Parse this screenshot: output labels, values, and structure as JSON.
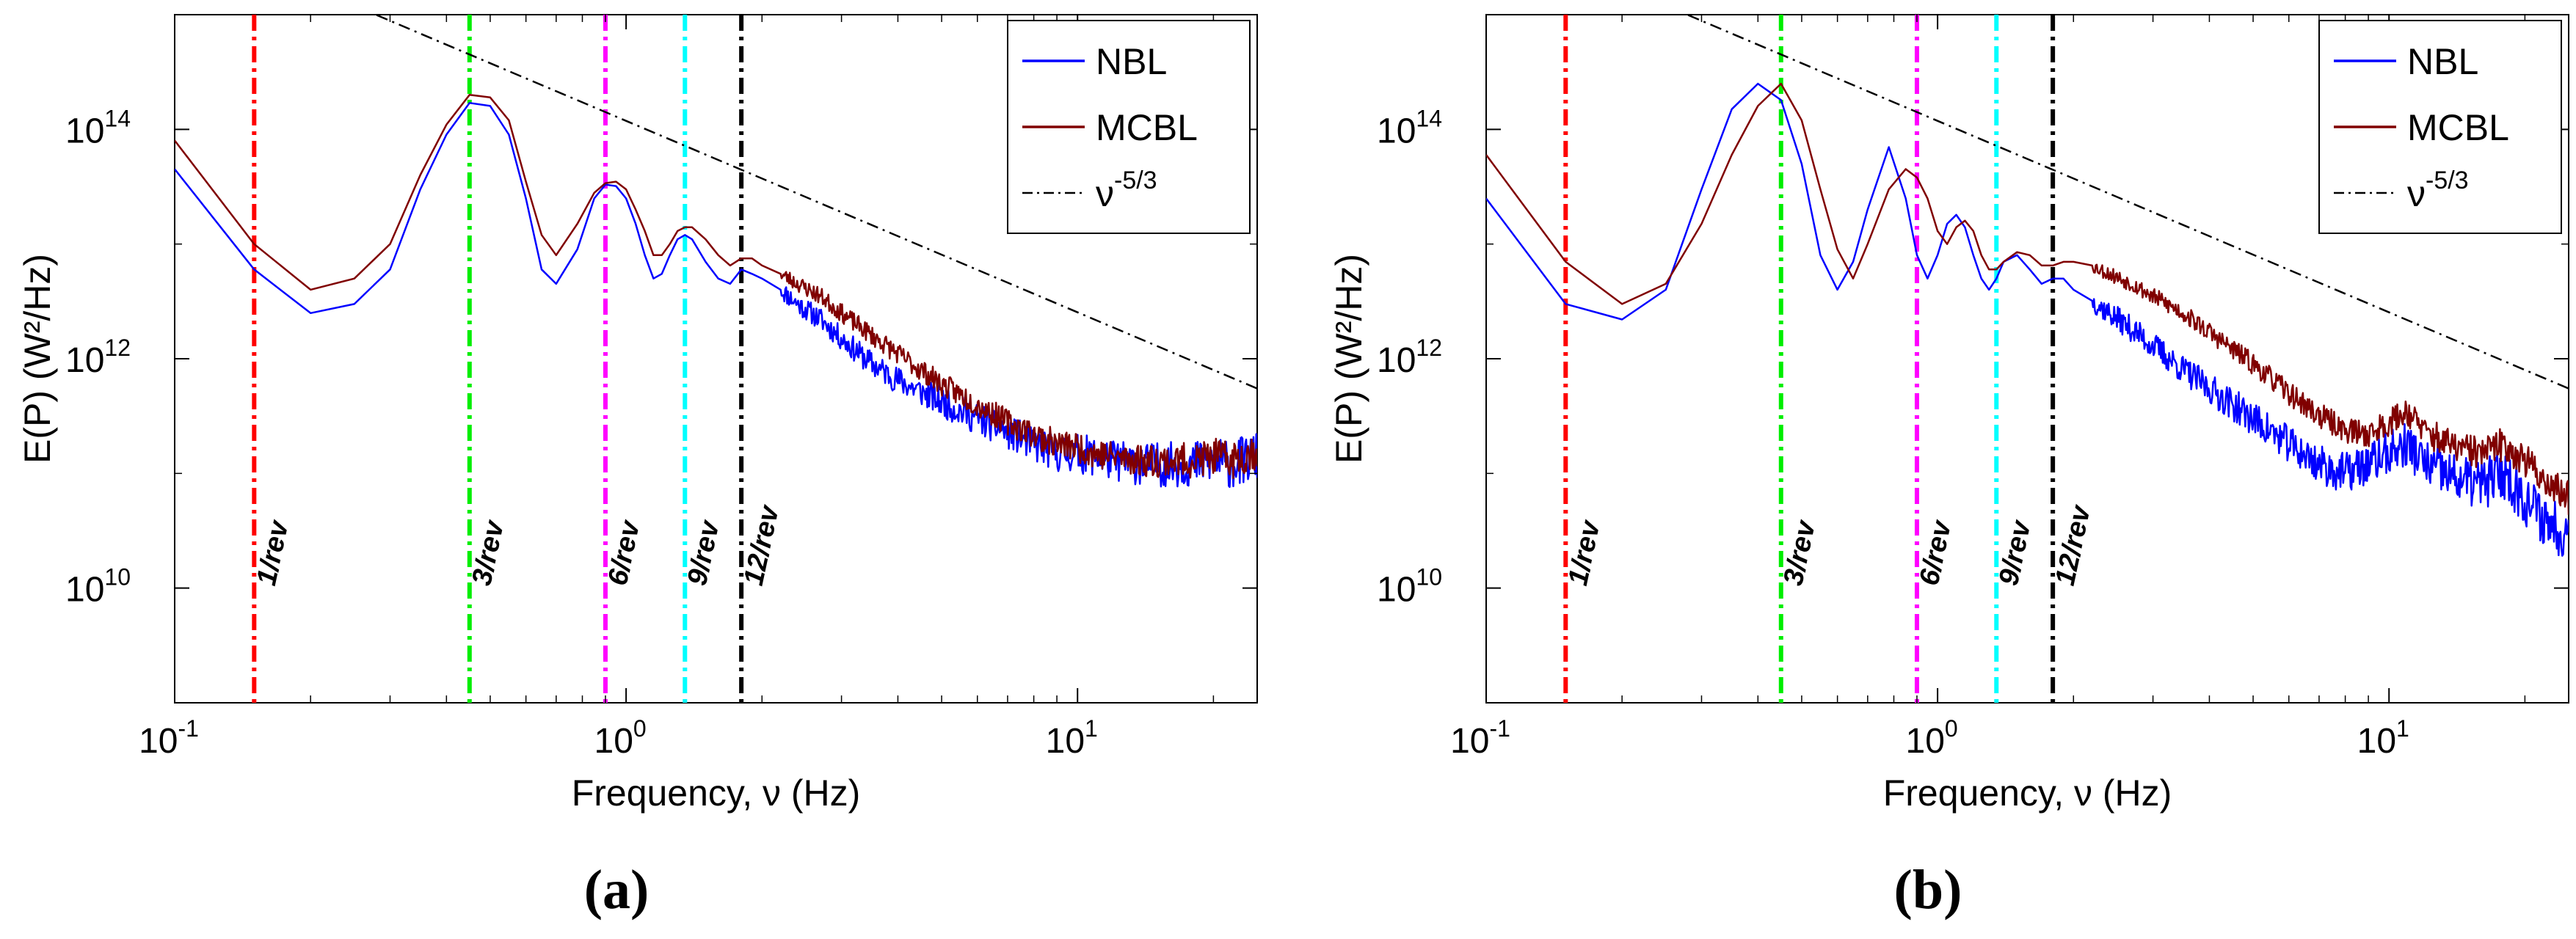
{
  "chart_data": [
    {
      "type": "line",
      "panel_label": "a",
      "xlabel": "Frequency, ν (Hz)",
      "ylabel": "E(P) (W²/Hz)",
      "xscale": "log",
      "yscale": "log",
      "xlim": [
        0.1,
        25
      ],
      "ylim": [
        1000000000.0,
        1000000000000000.0
      ],
      "xticks": [
        {
          "v": 0.1,
          "m": "10",
          "e": "-1"
        },
        {
          "v": 1,
          "m": "10",
          "e": "0"
        },
        {
          "v": 10,
          "m": "10",
          "e": "1"
        }
      ],
      "yticks": [
        {
          "v": 10000000000.0,
          "m": "10",
          "e": "10"
        },
        {
          "v": 1000000000000.0,
          "m": "10",
          "e": "12"
        },
        {
          "v": 100000000000000.0,
          "m": "10",
          "e": "14"
        }
      ],
      "legend_position": "top-right",
      "legend": [
        {
          "label": "NBL",
          "sup": "",
          "color": "#0000ff",
          "style": "solid"
        },
        {
          "label": "MCBL",
          "sup": "",
          "color": "#800000",
          "style": "solid"
        },
        {
          "label": "ν",
          "sup": "-5/3",
          "color": "#000000",
          "style": "dashdot"
        }
      ],
      "series": [
        {
          "name": "NBL",
          "color": "#0000ff",
          "noise": 0.22,
          "seed": 11,
          "x": [
            0.1,
            0.15,
            0.2,
            0.25,
            0.3,
            0.35,
            0.4,
            0.45,
            0.5,
            0.55,
            0.6,
            0.65,
            0.7,
            0.78,
            0.85,
            0.9,
            0.95,
            1.0,
            1.05,
            1.1,
            1.15,
            1.2,
            1.25,
            1.3,
            1.35,
            1.4,
            1.5,
            1.6,
            1.7,
            1.8,
            1.9,
            2.0,
            2.2,
            2.4,
            2.7,
            3.0,
            3.5,
            4,
            5,
            6,
            7,
            8,
            9,
            10,
            11,
            12,
            14,
            16,
            18,
            20,
            22,
            25
          ],
          "y": [
            45000000000000.0,
            6000000000000.0,
            2500000000000.0,
            3000000000000.0,
            6000000000000.0,
            30000000000000.0,
            90000000000000.0,
            170000000000000.0,
            160000000000000.0,
            90000000000000.0,
            25000000000000.0,
            6000000000000.0,
            4500000000000.0,
            9000000000000.0,
            25000000000000.0,
            33000000000000.0,
            32000000000000.0,
            25000000000000.0,
            15000000000000.0,
            8000000000000.0,
            5000000000000.0,
            5500000000000.0,
            8000000000000.0,
            11000000000000.0,
            12000000000000.0,
            11000000000000.0,
            7000000000000.0,
            5000000000000.0,
            4500000000000.0,
            6000000000000.0,
            5500000000000.0,
            5000000000000.0,
            4000000000000.0,
            3000000000000.0,
            2200000000000.0,
            1500000000000.0,
            900000000000.0,
            650000000000.0,
            420000000000.0,
            300000000000.0,
            230000000000.0,
            180000000000.0,
            150000000000.0,
            150000000000.0,
            140000000000.0,
            130000000000.0,
            120000000000.0,
            120000000000.0,
            120000000000.0,
            130000000000.0,
            120000000000.0,
            140000000000.0
          ]
        },
        {
          "name": "MCBL",
          "color": "#800000",
          "noise": 0.17,
          "seed": 23,
          "x": [
            0.1,
            0.15,
            0.2,
            0.25,
            0.3,
            0.35,
            0.4,
            0.45,
            0.5,
            0.55,
            0.6,
            0.65,
            0.7,
            0.78,
            0.85,
            0.9,
            0.95,
            1.0,
            1.05,
            1.1,
            1.15,
            1.2,
            1.25,
            1.3,
            1.35,
            1.4,
            1.5,
            1.6,
            1.7,
            1.8,
            1.9,
            2.0,
            2.2,
            2.4,
            2.7,
            3.0,
            3.5,
            4,
            5,
            6,
            7,
            8,
            9,
            10,
            11,
            12,
            14,
            16,
            18,
            20,
            22,
            25
          ],
          "y": [
            80000000000000.0,
            10000000000000.0,
            4000000000000.0,
            5000000000000.0,
            10000000000000.0,
            40000000000000.0,
            110000000000000.0,
            200000000000000.0,
            190000000000000.0,
            120000000000000.0,
            35000000000000.0,
            12000000000000.0,
            8000000000000.0,
            15000000000000.0,
            28000000000000.0,
            34000000000000.0,
            35000000000000.0,
            30000000000000.0,
            20000000000000.0,
            13000000000000.0,
            8000000000000.0,
            8000000000000.0,
            10000000000000.0,
            13000000000000.0,
            14000000000000.0,
            14000000000000.0,
            11000000000000.0,
            8000000000000.0,
            6500000000000.0,
            7500000000000.0,
            7500000000000.0,
            6500000000000.0,
            5500000000000.0,
            4500000000000.0,
            3500000000000.0,
            2500000000000.0,
            1600000000000.0,
            1100000000000.0,
            600000000000.0,
            400000000000.0,
            280000000000.0,
            220000000000.0,
            180000000000.0,
            170000000000.0,
            150000000000.0,
            140000000000.0,
            130000000000.0,
            130000000000.0,
            130000000000.0,
            140000000000.0,
            130000000000.0,
            160000000000.0
          ]
        },
        {
          "name": "ν^-5/3",
          "color": "#000000",
          "dash": "dashdot",
          "x": [
            0.25,
            25
          ],
          "y": [
            1200000000000000.0,
            550000000000.0
          ]
        }
      ],
      "rev_lines": [
        {
          "freq": 0.15,
          "label": "1/rev",
          "color": "#ff0000"
        },
        {
          "freq": 0.45,
          "label": "3/rev",
          "color": "#00ee00"
        },
        {
          "freq": 0.9,
          "label": "6/rev",
          "color": "#ff00ff"
        },
        {
          "freq": 1.35,
          "label": "9/rev",
          "color": "#00ffff"
        },
        {
          "freq": 1.8,
          "label": "12/rev",
          "color": "#000000"
        }
      ]
    },
    {
      "type": "line",
      "panel_label": "b",
      "xlabel": "Frequency, ν (Hz)",
      "ylabel": "E(P) (W²/Hz)",
      "xscale": "log",
      "yscale": "log",
      "xlim": [
        0.1,
        25
      ],
      "ylim": [
        1000000000.0,
        1000000000000000.0
      ],
      "xticks": [
        {
          "v": 0.1,
          "m": "10",
          "e": "-1"
        },
        {
          "v": 1,
          "m": "10",
          "e": "0"
        },
        {
          "v": 10,
          "m": "10",
          "e": "1"
        }
      ],
      "yticks": [
        {
          "v": 10000000000.0,
          "m": "10",
          "e": "10"
        },
        {
          "v": 1000000000000.0,
          "m": "10",
          "e": "12"
        },
        {
          "v": 100000000000000.0,
          "m": "10",
          "e": "14"
        }
      ],
      "legend_position": "top-right",
      "legend": [
        {
          "label": "NBL",
          "sup": "",
          "color": "#0000ff",
          "style": "solid"
        },
        {
          "label": "MCBL",
          "sup": "",
          "color": "#800000",
          "style": "solid"
        },
        {
          "label": "ν",
          "sup": "-5/3",
          "color": "#000000",
          "style": "dashdot"
        }
      ],
      "series": [
        {
          "name": "NBL",
          "color": "#0000ff",
          "noise": 0.25,
          "seed": 37,
          "x": [
            0.1,
            0.15,
            0.2,
            0.25,
            0.3,
            0.35,
            0.4,
            0.45,
            0.5,
            0.55,
            0.6,
            0.65,
            0.7,
            0.78,
            0.85,
            0.9,
            0.95,
            1.0,
            1.05,
            1.1,
            1.15,
            1.2,
            1.25,
            1.3,
            1.35,
            1.4,
            1.5,
            1.6,
            1.7,
            1.8,
            1.9,
            2.0,
            2.2,
            2.4,
            2.7,
            3.0,
            3.5,
            4,
            5,
            6,
            7,
            8,
            9,
            10,
            11,
            12,
            14,
            16,
            18,
            20,
            22,
            25
          ],
          "y": [
            25000000000000.0,
            3000000000000.0,
            2200000000000.0,
            4000000000000.0,
            30000000000000.0,
            150000000000000.0,
            250000000000000.0,
            180000000000000.0,
            50000000000000.0,
            8000000000000.0,
            4000000000000.0,
            7000000000000.0,
            20000000000000.0,
            70000000000000.0,
            25000000000000.0,
            8000000000000.0,
            5000000000000.0,
            8000000000000.0,
            15000000000000.0,
            18000000000000.0,
            14000000000000.0,
            8000000000000.0,
            5000000000000.0,
            4000000000000.0,
            5000000000000.0,
            7000000000000.0,
            8000000000000.0,
            6000000000000.0,
            4500000000000.0,
            5000000000000.0,
            5000000000000.0,
            4000000000000.0,
            3200000000000.0,
            2500000000000.0,
            1800000000000.0,
            1300000000000.0,
            800000000000.0,
            550000000000.0,
            300000000000.0,
            180000000000.0,
            120000000000.0,
            100000000000.0,
            120000000000.0,
            150000000000.0,
            180000000000.0,
            120000000000.0,
            90000000000.0,
            80000000000.0,
            100000000000.0,
            60000000000.0,
            40000000000.0,
            30000000000.0
          ]
        },
        {
          "name": "MCBL",
          "color": "#800000",
          "noise": 0.16,
          "seed": 53,
          "x": [
            0.1,
            0.15,
            0.2,
            0.25,
            0.3,
            0.35,
            0.4,
            0.45,
            0.5,
            0.55,
            0.6,
            0.65,
            0.7,
            0.78,
            0.85,
            0.9,
            0.95,
            1.0,
            1.05,
            1.1,
            1.15,
            1.2,
            1.25,
            1.3,
            1.35,
            1.4,
            1.5,
            1.6,
            1.7,
            1.8,
            1.9,
            2.0,
            2.2,
            2.4,
            2.7,
            3.0,
            3.5,
            4,
            5,
            6,
            7,
            8,
            9,
            10,
            11,
            12,
            14,
            16,
            18,
            20,
            22,
            25
          ],
          "y": [
            60000000000000.0,
            7000000000000.0,
            3000000000000.0,
            4500000000000.0,
            15000000000000.0,
            60000000000000.0,
            160000000000000.0,
            250000000000000.0,
            120000000000000.0,
            30000000000000.0,
            9000000000000.0,
            5000000000000.0,
            10000000000000.0,
            30000000000000.0,
            45000000000000.0,
            38000000000000.0,
            25000000000000.0,
            13000000000000.0,
            10000000000000.0,
            14000000000000.0,
            16000000000000.0,
            13000000000000.0,
            8000000000000.0,
            6000000000000.0,
            6000000000000.0,
            7000000000000.0,
            8500000000000.0,
            8000000000000.0,
            6500000000000.0,
            6500000000000.0,
            7000000000000.0,
            7000000000000.0,
            6500000000000.0,
            5500000000000.0,
            4500000000000.0,
            3500000000000.0,
            2500000000000.0,
            1700000000000.0,
            900000000000.0,
            500000000000.0,
            320000000000.0,
            240000000000.0,
            220000000000.0,
            280000000000.0,
            350000000000.0,
            230000000000.0,
            170000000000.0,
            150000000000.0,
            180000000000.0,
            130000000000.0,
            90000000000.0,
            60000000000.0
          ]
        },
        {
          "name": "ν^-5/3",
          "color": "#000000",
          "dash": "dashdot",
          "x": [
            0.25,
            25
          ],
          "y": [
            1200000000000000.0,
            550000000000.0
          ]
        }
      ],
      "rev_lines": [
        {
          "freq": 0.15,
          "label": "1/rev",
          "color": "#ff0000"
        },
        {
          "freq": 0.45,
          "label": "3/rev",
          "color": "#00ee00"
        },
        {
          "freq": 0.9,
          "label": "6/rev",
          "color": "#ff00ff"
        },
        {
          "freq": 1.35,
          "label": "9/rev",
          "color": "#00ffff"
        },
        {
          "freq": 1.8,
          "label": "12/rev",
          "color": "#000000"
        }
      ]
    }
  ]
}
